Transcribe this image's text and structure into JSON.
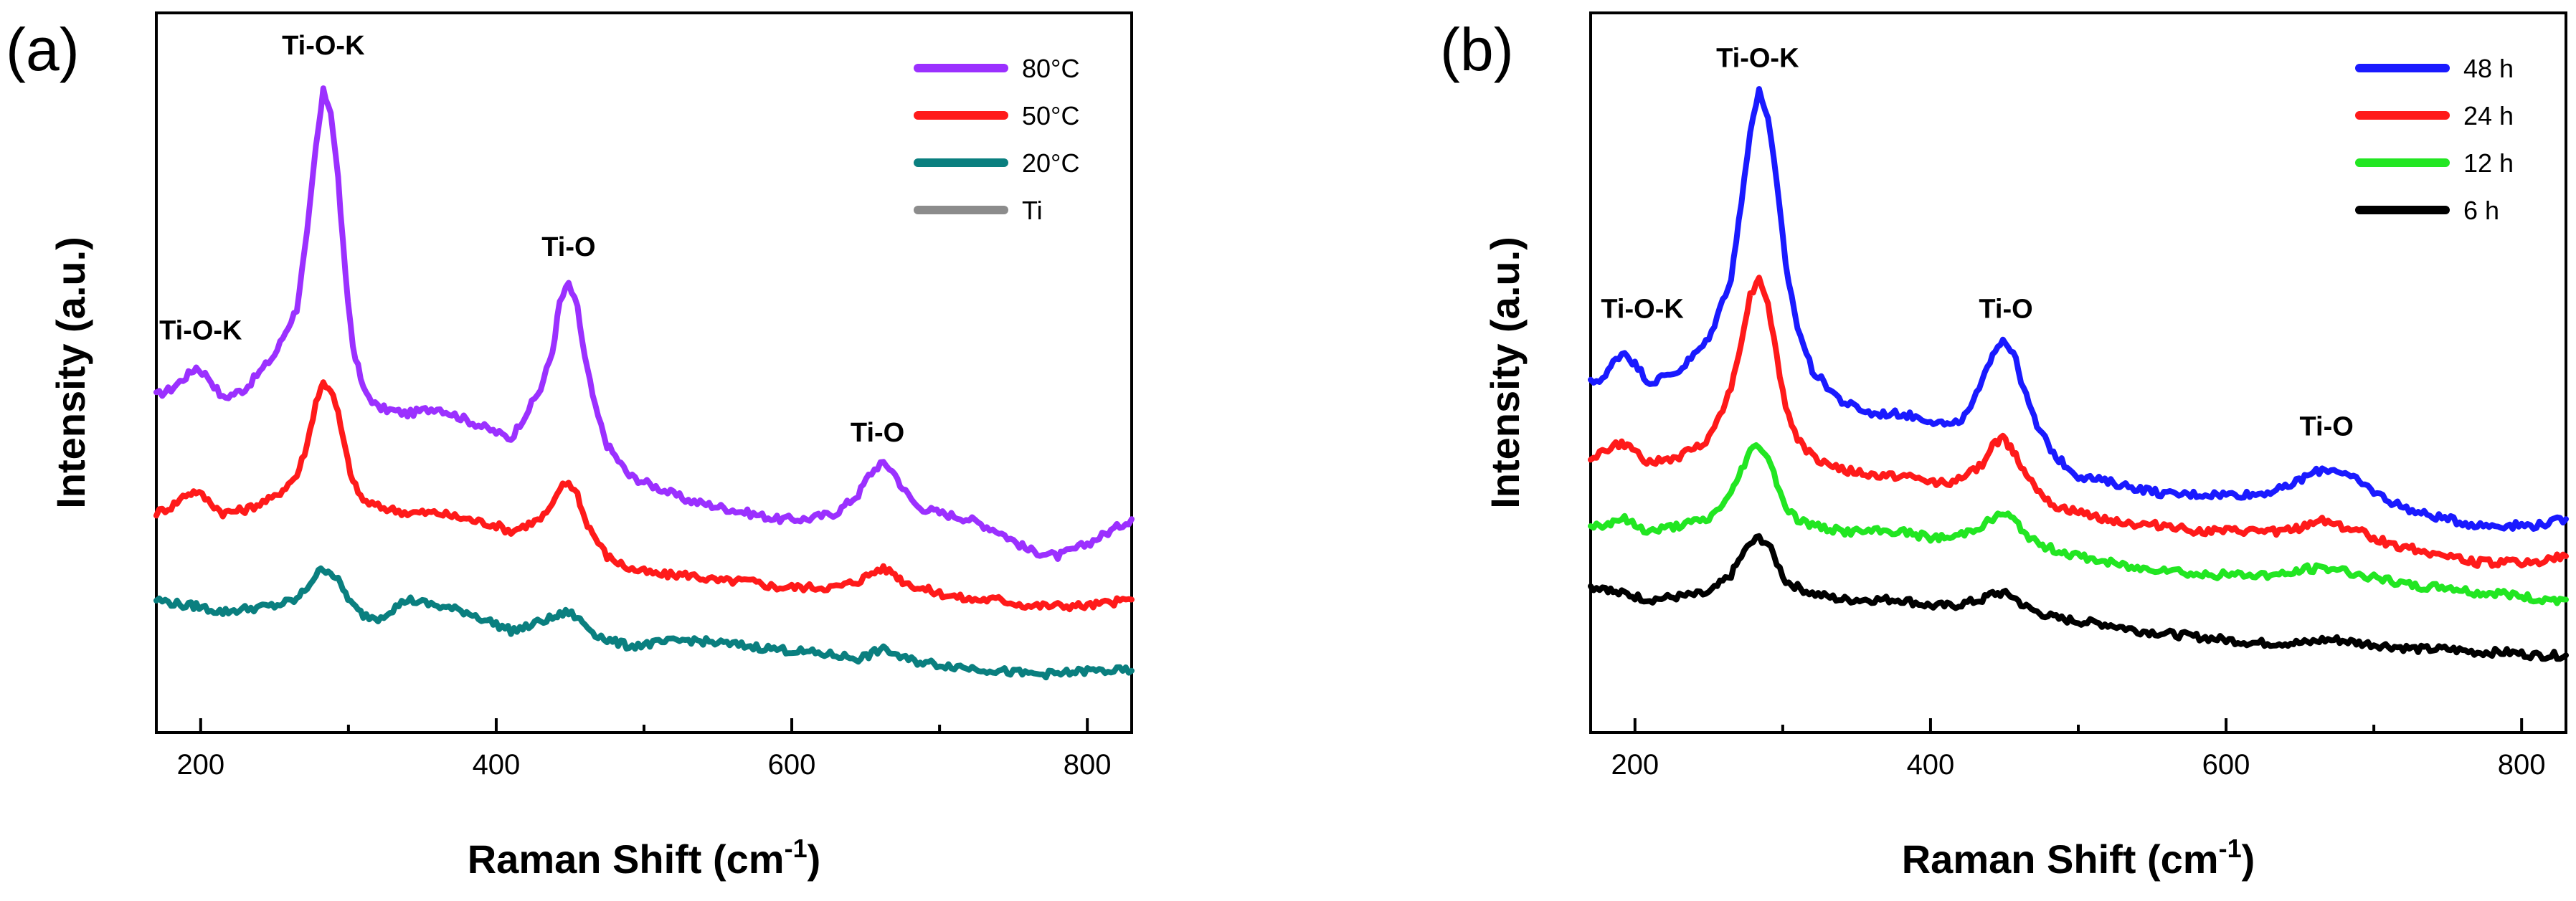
{
  "chart_data": [
    {
      "type": "line",
      "panel_label": "(a)",
      "xlabel": "Raman Shift (cm",
      "xlabel_sup": "-1",
      "xlabel_close": ")",
      "ylabel": "Intensity (a.u.)",
      "xlim": [
        170,
        830
      ],
      "ylim": [
        0,
        1
      ],
      "x_ticks": [
        200,
        400,
        600,
        800
      ],
      "x_tick_labels": [
        "200",
        "400",
        "600",
        "800"
      ],
      "legend_position": "top-right",
      "legend": [
        {
          "name": "80°C",
          "color": "#9B30FF"
        },
        {
          "name": "50°C",
          "color": "#FF1A1A"
        },
        {
          "name": "20°C",
          "color": "#0A7F7F"
        },
        {
          "name": "Ti",
          "color": "#8C8C8C"
        }
      ],
      "annotations": [
        {
          "text": "Ti-O-K",
          "x": 200,
          "y": 0.6
        },
        {
          "text": "Ti-O-K",
          "x": 283,
          "y": 1.06
        },
        {
          "text": "Ti-O",
          "x": 449,
          "y": 0.735
        },
        {
          "text": "Ti-O",
          "x": 658,
          "y": 0.435
        }
      ],
      "series": [
        {
          "name": "80°C",
          "color": "#9B30FF",
          "x": [
            170,
            180,
            190,
            197,
            205,
            215,
            230,
            250,
            265,
            272,
            278,
            283,
            288,
            293,
            298,
            303,
            310,
            320,
            340,
            360,
            380,
            400,
            410,
            420,
            430,
            438,
            443,
            449,
            455,
            460,
            467,
            475,
            490,
            510,
            530,
            550,
            570,
            590,
            610,
            630,
            645,
            652,
            660,
            668,
            675,
            685,
            700,
            720,
            740,
            760,
            780,
            800,
            830
          ],
          "values": [
            0.51,
            0.52,
            0.54,
            0.555,
            0.54,
            0.505,
            0.52,
            0.575,
            0.65,
            0.77,
            0.91,
            1.0,
            0.97,
            0.86,
            0.7,
            0.59,
            0.52,
            0.49,
            0.48,
            0.49,
            0.47,
            0.45,
            0.44,
            0.48,
            0.52,
            0.58,
            0.66,
            0.69,
            0.65,
            0.57,
            0.49,
            0.43,
            0.38,
            0.36,
            0.34,
            0.33,
            0.32,
            0.31,
            0.31,
            0.32,
            0.35,
            0.38,
            0.4,
            0.39,
            0.36,
            0.33,
            0.32,
            0.31,
            0.29,
            0.26,
            0.25,
            0.27,
            0.31
          ]
        },
        {
          "name": "50°C",
          "color": "#FF1A1A",
          "x": [
            170,
            180,
            190,
            197,
            205,
            215,
            230,
            250,
            265,
            272,
            278,
            283,
            288,
            293,
            298,
            303,
            310,
            320,
            340,
            360,
            380,
            400,
            410,
            420,
            430,
            438,
            443,
            449,
            455,
            460,
            467,
            475,
            490,
            510,
            530,
            550,
            570,
            590,
            610,
            630,
            645,
            652,
            660,
            668,
            675,
            685,
            700,
            720,
            740,
            760,
            780,
            800,
            830
          ],
          "values": [
            0.32,
            0.33,
            0.35,
            0.355,
            0.34,
            0.32,
            0.325,
            0.345,
            0.38,
            0.43,
            0.5,
            0.53,
            0.52,
            0.48,
            0.42,
            0.37,
            0.34,
            0.33,
            0.32,
            0.32,
            0.31,
            0.3,
            0.29,
            0.3,
            0.31,
            0.33,
            0.36,
            0.37,
            0.35,
            0.31,
            0.28,
            0.25,
            0.23,
            0.22,
            0.22,
            0.21,
            0.21,
            0.2,
            0.2,
            0.2,
            0.21,
            0.22,
            0.23,
            0.225,
            0.21,
            0.2,
            0.19,
            0.18,
            0.18,
            0.17,
            0.17,
            0.17,
            0.18
          ]
        },
        {
          "name": "20°C",
          "color": "#0A7F7F",
          "x": [
            170,
            180,
            190,
            197,
            205,
            215,
            230,
            250,
            265,
            272,
            278,
            283,
            288,
            293,
            298,
            303,
            310,
            320,
            340,
            360,
            380,
            400,
            410,
            420,
            430,
            438,
            443,
            449,
            455,
            460,
            467,
            475,
            490,
            510,
            530,
            550,
            570,
            590,
            610,
            630,
            645,
            652,
            660,
            668,
            675,
            685,
            700,
            720,
            740,
            760,
            780,
            800,
            830
          ],
          "values": [
            0.18,
            0.175,
            0.17,
            0.17,
            0.165,
            0.16,
            0.165,
            0.17,
            0.18,
            0.2,
            0.22,
            0.23,
            0.225,
            0.21,
            0.19,
            0.17,
            0.155,
            0.15,
            0.18,
            0.17,
            0.16,
            0.14,
            0.13,
            0.135,
            0.145,
            0.15,
            0.155,
            0.16,
            0.15,
            0.14,
            0.125,
            0.115,
            0.105,
            0.11,
            0.115,
            0.11,
            0.105,
            0.1,
            0.095,
            0.09,
            0.085,
            0.09,
            0.1,
            0.095,
            0.085,
            0.08,
            0.075,
            0.07,
            0.065,
            0.06,
            0.06,
            0.065,
            0.065
          ]
        }
      ]
    },
    {
      "type": "line",
      "panel_label": "(b)",
      "xlabel": "Raman Shift (cm",
      "xlabel_sup": "-1",
      "xlabel_close": ")",
      "ylabel": "Intensity (a.u.)",
      "xlim": [
        170,
        830
      ],
      "ylim": [
        0,
        1
      ],
      "x_ticks": [
        200,
        400,
        600,
        800
      ],
      "x_tick_labels": [
        "200",
        "400",
        "600",
        "800"
      ],
      "legend_position": "top-right",
      "legend": [
        {
          "name": "48 h",
          "color": "#1A1AFF"
        },
        {
          "name": "24 h",
          "color": "#FF1A1A"
        },
        {
          "name": "12 h",
          "color": "#22E622"
        },
        {
          "name": "6 h",
          "color": "#000000"
        }
      ],
      "annotations": [
        {
          "text": "Ti-O-K",
          "x": 205,
          "y": 0.635
        },
        {
          "text": "Ti-O-K",
          "x": 283,
          "y": 1.04
        },
        {
          "text": "Ti-O",
          "x": 451,
          "y": 0.635
        },
        {
          "text": "Ti-O",
          "x": 668,
          "y": 0.445
        }
      ],
      "series": [
        {
          "name": "48 h",
          "color": "#1A1AFF",
          "x": [
            170,
            180,
            187,
            193,
            200,
            210,
            230,
            250,
            265,
            272,
            278,
            284,
            290,
            296,
            302,
            310,
            320,
            340,
            360,
            380,
            400,
            415,
            425,
            435,
            442,
            449,
            456,
            463,
            472,
            485,
            500,
            520,
            540,
            560,
            580,
            600,
            620,
            640,
            655,
            665,
            675,
            690,
            710,
            730,
            750,
            770,
            790,
            810,
            830
          ],
          "values": [
            0.53,
            0.54,
            0.57,
            0.58,
            0.56,
            0.53,
            0.55,
            0.6,
            0.7,
            0.82,
            0.94,
            1.0,
            0.96,
            0.85,
            0.72,
            0.62,
            0.55,
            0.5,
            0.48,
            0.48,
            0.47,
            0.46,
            0.48,
            0.53,
            0.58,
            0.6,
            0.58,
            0.52,
            0.46,
            0.41,
            0.38,
            0.37,
            0.36,
            0.35,
            0.35,
            0.35,
            0.35,
            0.36,
            0.38,
            0.39,
            0.39,
            0.37,
            0.34,
            0.32,
            0.31,
            0.3,
            0.3,
            0.3,
            0.31
          ]
        },
        {
          "name": "24 h",
          "color": "#FF1A1A",
          "x": [
            170,
            180,
            187,
            193,
            200,
            210,
            230,
            250,
            265,
            272,
            278,
            284,
            290,
            296,
            302,
            310,
            320,
            340,
            360,
            380,
            400,
            415,
            425,
            435,
            442,
            449,
            456,
            463,
            472,
            485,
            500,
            520,
            540,
            560,
            580,
            600,
            620,
            640,
            655,
            665,
            675,
            690,
            710,
            730,
            750,
            770,
            790,
            810,
            830
          ],
          "values": [
            0.41,
            0.42,
            0.43,
            0.43,
            0.42,
            0.4,
            0.41,
            0.44,
            0.52,
            0.6,
            0.67,
            0.7,
            0.66,
            0.57,
            0.49,
            0.44,
            0.41,
            0.39,
            0.38,
            0.38,
            0.37,
            0.37,
            0.38,
            0.4,
            0.43,
            0.44,
            0.42,
            0.39,
            0.36,
            0.33,
            0.32,
            0.31,
            0.3,
            0.3,
            0.29,
            0.29,
            0.29,
            0.29,
            0.3,
            0.31,
            0.3,
            0.29,
            0.27,
            0.26,
            0.25,
            0.24,
            0.24,
            0.24,
            0.25
          ]
        },
        {
          "name": "12 h",
          "color": "#22E622",
          "x": [
            170,
            180,
            187,
            193,
            200,
            210,
            230,
            250,
            265,
            272,
            278,
            284,
            290,
            296,
            302,
            310,
            320,
            340,
            360,
            380,
            400,
            415,
            425,
            435,
            442,
            449,
            456,
            463,
            472,
            485,
            500,
            520,
            540,
            560,
            580,
            600,
            620,
            640,
            655,
            665,
            675,
            690,
            710,
            730,
            750,
            770,
            790,
            810,
            830
          ],
          "values": [
            0.3,
            0.3,
            0.31,
            0.31,
            0.3,
            0.29,
            0.3,
            0.31,
            0.35,
            0.39,
            0.42,
            0.43,
            0.41,
            0.37,
            0.33,
            0.31,
            0.3,
            0.29,
            0.29,
            0.29,
            0.28,
            0.28,
            0.29,
            0.3,
            0.31,
            0.32,
            0.31,
            0.29,
            0.27,
            0.26,
            0.25,
            0.24,
            0.23,
            0.23,
            0.22,
            0.22,
            0.22,
            0.22,
            0.23,
            0.23,
            0.23,
            0.22,
            0.21,
            0.2,
            0.2,
            0.19,
            0.19,
            0.18,
            0.18
          ]
        },
        {
          "name": "6 h",
          "color": "#000000",
          "x": [
            170,
            180,
            187,
            193,
            200,
            210,
            230,
            250,
            265,
            272,
            278,
            284,
            290,
            296,
            302,
            310,
            320,
            340,
            360,
            380,
            400,
            415,
            425,
            435,
            442,
            449,
            456,
            463,
            472,
            485,
            500,
            520,
            540,
            560,
            580,
            600,
            620,
            640,
            655,
            665,
            675,
            690,
            710,
            730,
            750,
            770,
            790,
            810,
            830
          ],
          "values": [
            0.2,
            0.2,
            0.19,
            0.19,
            0.185,
            0.18,
            0.185,
            0.19,
            0.22,
            0.25,
            0.27,
            0.28,
            0.27,
            0.24,
            0.21,
            0.2,
            0.19,
            0.18,
            0.18,
            0.18,
            0.17,
            0.17,
            0.175,
            0.18,
            0.19,
            0.19,
            0.185,
            0.17,
            0.16,
            0.15,
            0.145,
            0.14,
            0.13,
            0.125,
            0.12,
            0.115,
            0.11,
            0.11,
            0.11,
            0.115,
            0.115,
            0.11,
            0.105,
            0.1,
            0.1,
            0.095,
            0.095,
            0.09,
            0.09
          ]
        }
      ]
    }
  ]
}
